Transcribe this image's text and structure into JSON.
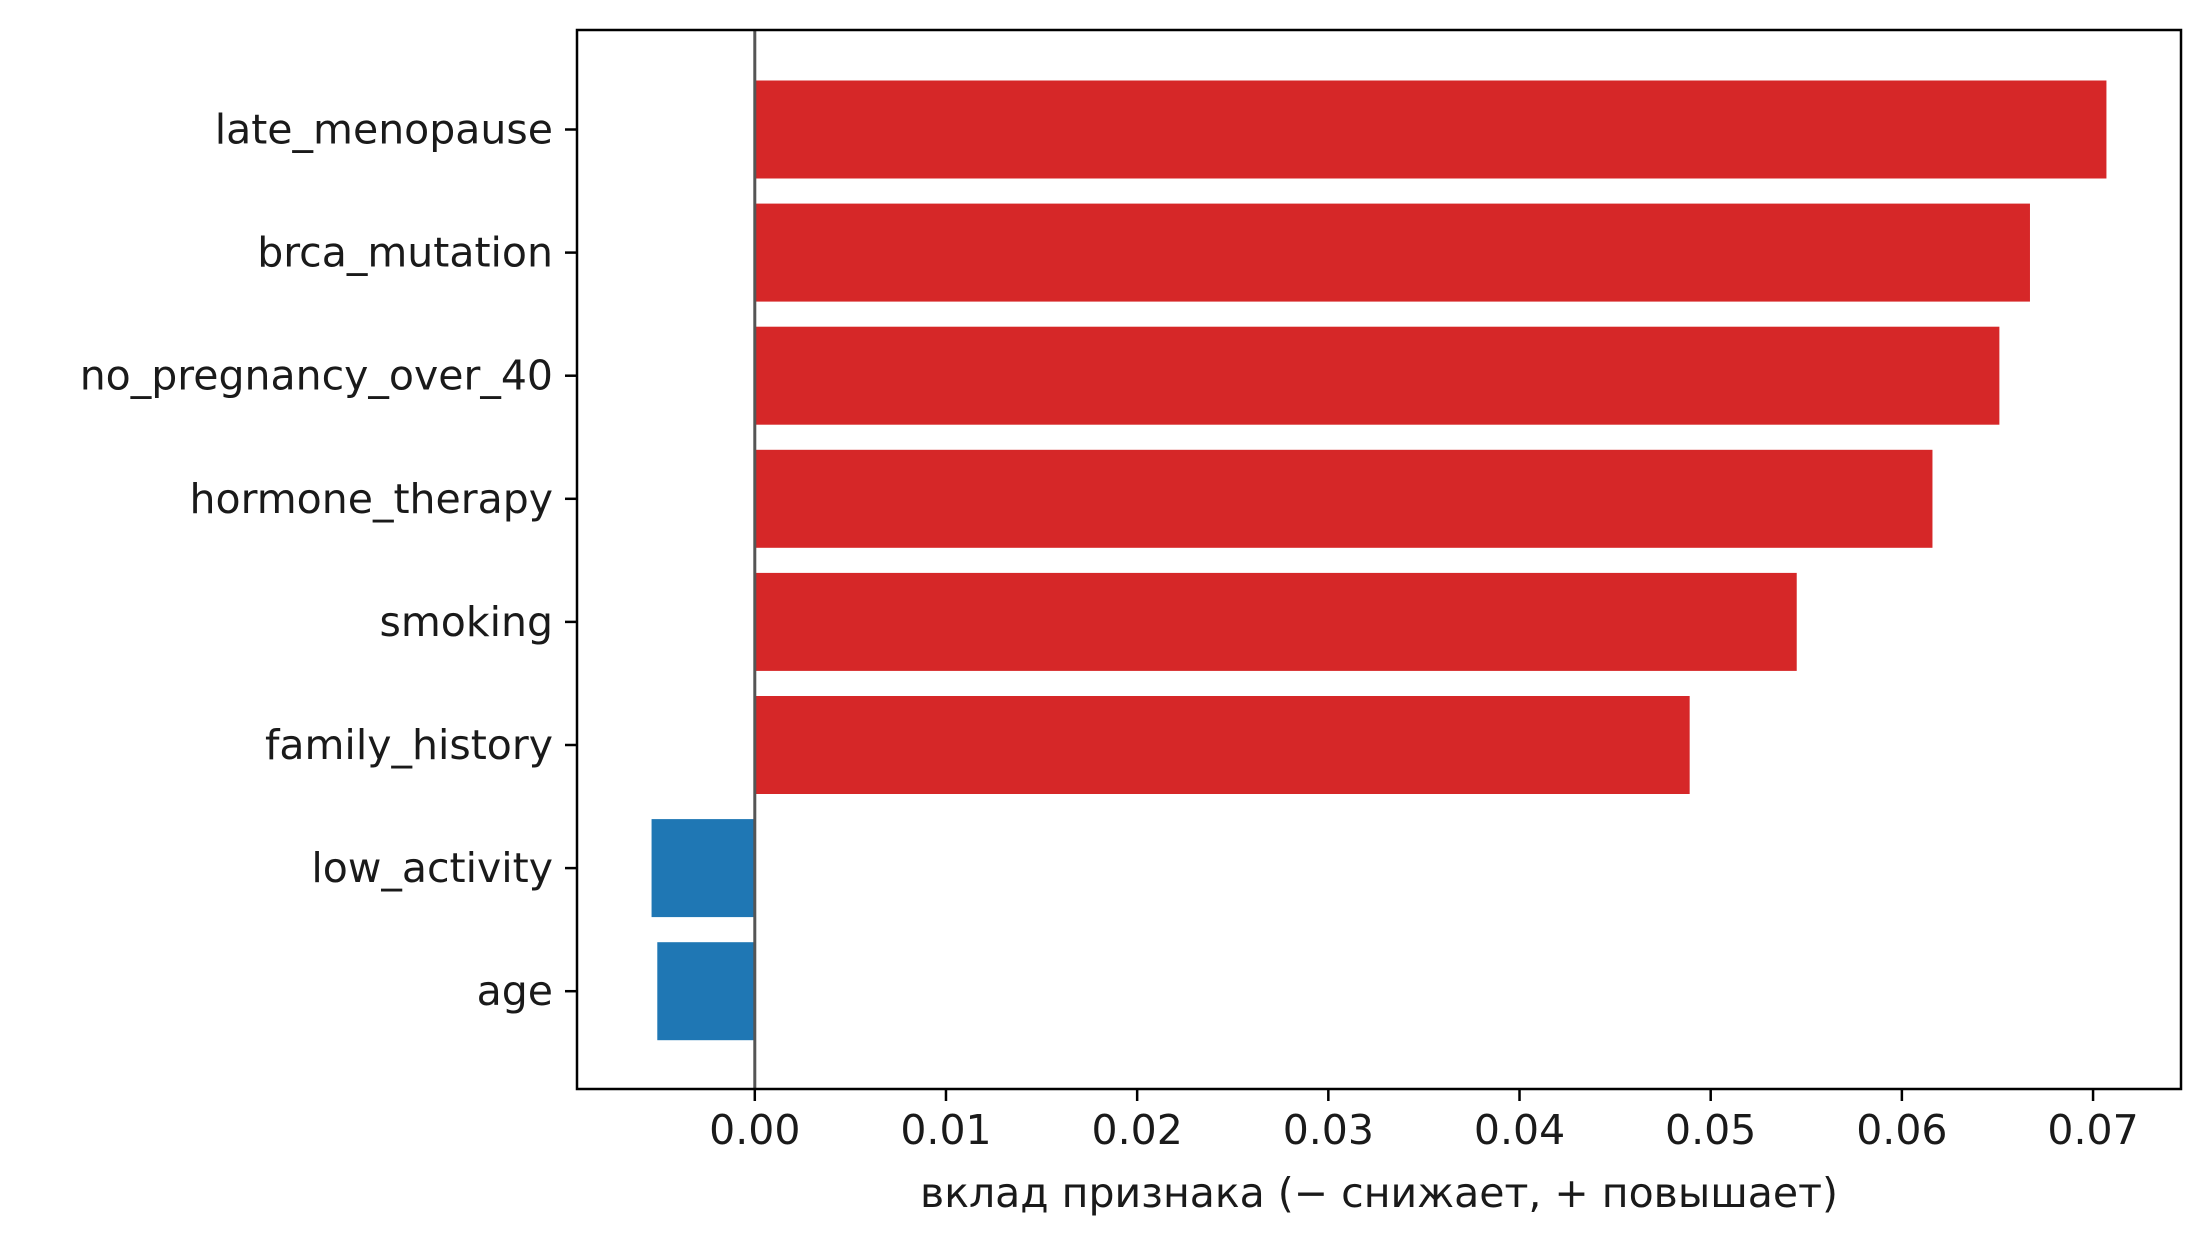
{
  "chart_data": {
    "type": "bar",
    "orientation": "horizontal",
    "categories": [
      "late_menopause",
      "brca_mutation",
      "no_pregnancy_over_40",
      "hormone_therapy",
      "smoking",
      "family_history",
      "low_activity",
      "age"
    ],
    "values": [
      0.0707,
      0.0667,
      0.0651,
      0.0616,
      0.0545,
      0.0489,
      -0.0054,
      -0.0051
    ],
    "xlabel": "вклад признака (− снижает, + повышает)",
    "ylabel": "",
    "title": "",
    "xlim": [
      -0.0093,
      0.0746
    ],
    "xticks": [
      0.0,
      0.01,
      0.02,
      0.03,
      0.04,
      0.05,
      0.06,
      0.07
    ],
    "xtick_labels": [
      "0.00",
      "0.01",
      "0.02",
      "0.03",
      "0.04",
      "0.05",
      "0.06",
      "0.07"
    ],
    "grid": false,
    "legend": "none",
    "colors": {
      "positive": "#d62728",
      "negative": "#1f77b4",
      "zero_line": "#555555",
      "axis": "#000000"
    }
  }
}
